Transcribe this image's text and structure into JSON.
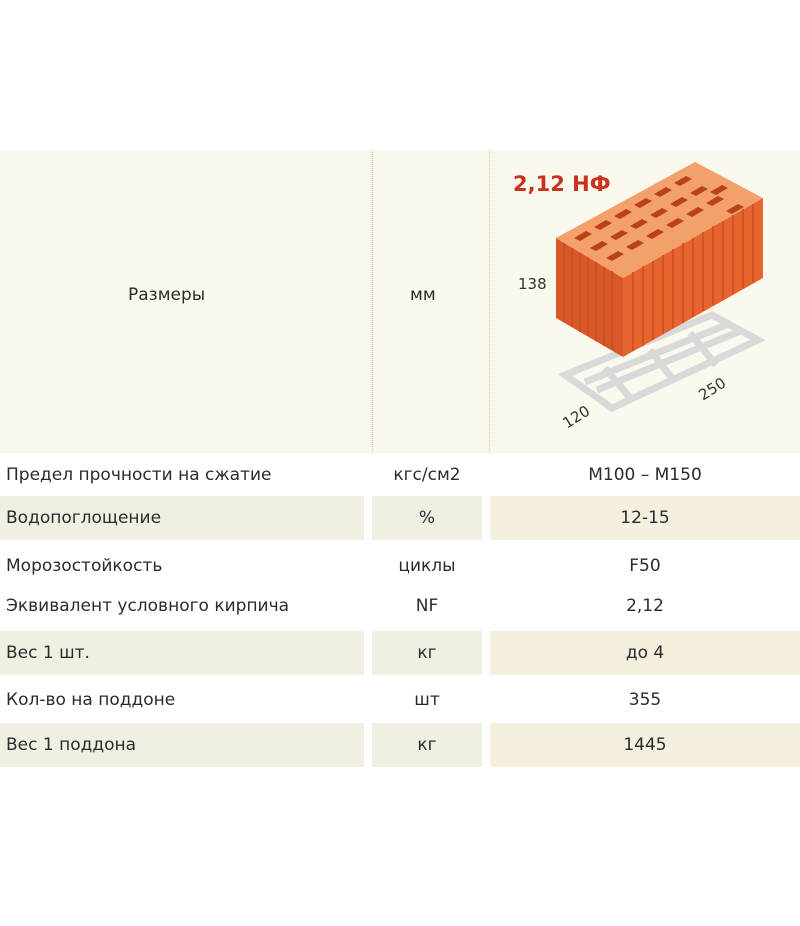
{
  "header": {
    "sizes_label": "Размеры",
    "sizes_unit": "мм",
    "brick_badge": "2,12 НФ",
    "dim_height": "138",
    "dim_width": "120",
    "dim_length": "250"
  },
  "rows": [
    {
      "name": "Предел прочности на сжатие",
      "unit": "кгс/см2",
      "value": "М100 – М150"
    },
    {
      "name": "Водопоглощение",
      "unit": "%",
      "value": "12-15"
    },
    {
      "name": "Морозостойкость",
      "unit": "циклы",
      "value": "F50"
    },
    {
      "name": "Эквивалент условного кирпича",
      "unit": "NF",
      "value": "2,12"
    },
    {
      "name": "Вес 1 шт.",
      "unit": "кг",
      "value": "до 4"
    },
    {
      "name": "Кол-во на поддоне",
      "unit": "шт",
      "value": "355"
    },
    {
      "name": "Вес 1 поддона",
      "unit": "кг",
      "value": "1445"
    }
  ],
  "colors": {
    "brick_front": "#e2612c",
    "brick_top": "#f29a62",
    "brick_side": "#c9491d",
    "badge": "#c8321e",
    "band": "#fbf9ee",
    "shade": "#f1eee2"
  }
}
